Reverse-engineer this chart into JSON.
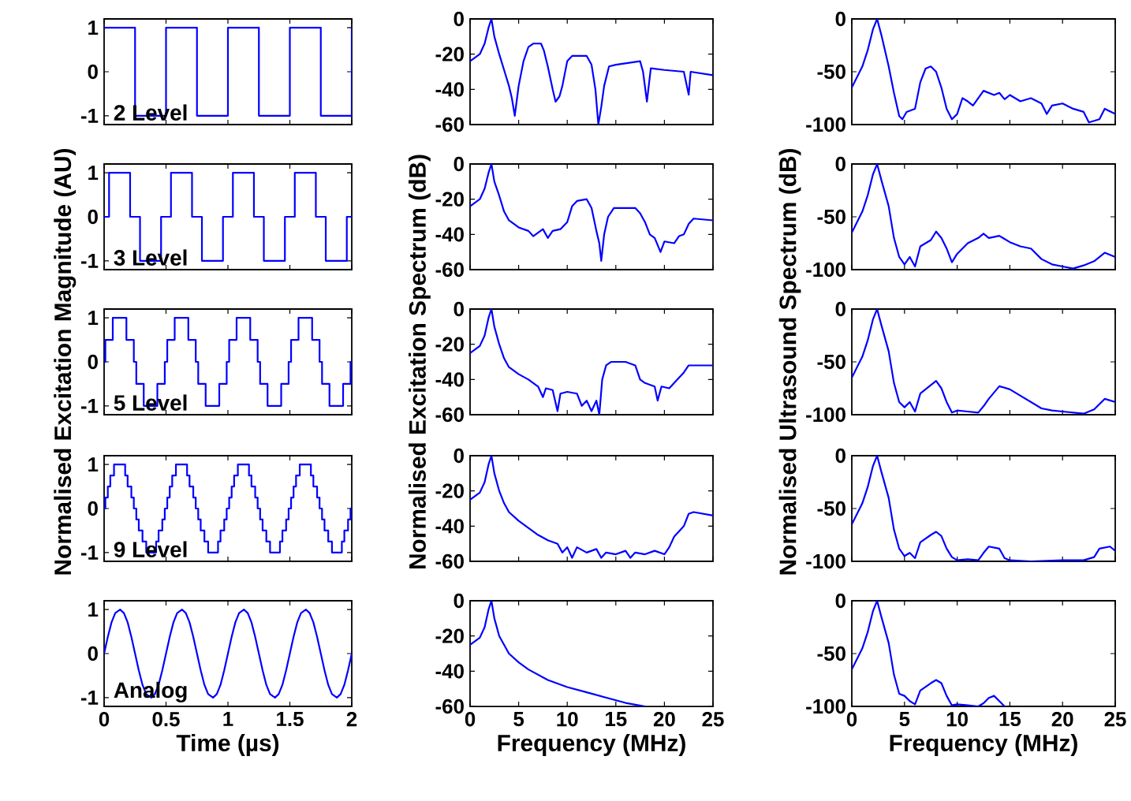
{
  "chart_data": [
    {
      "type": "step",
      "annotations": [
        "2 Level"
      ],
      "color": "#0000ff",
      "xlim": [
        0,
        2
      ],
      "ylim": [
        -1.2,
        1.2
      ],
      "xticks": [
        0,
        0.5,
        1,
        1.5,
        2
      ],
      "yticks": [
        -1,
        0,
        1
      ],
      "tick_labels": "y",
      "x": [
        0,
        0.25,
        0.5,
        0.75,
        1,
        1.25,
        1.5,
        1.75,
        2
      ],
      "values": [
        1,
        -1,
        1,
        -1,
        1,
        -1,
        1,
        -1,
        1
      ]
    },
    {
      "type": "line",
      "color": "#0000ff",
      "xlim": [
        0,
        25
      ],
      "ylim": [
        -60,
        0
      ],
      "xticks": [
        0,
        5,
        10,
        15,
        20,
        25
      ],
      "yticks": [
        -60,
        -40,
        -20,
        0
      ],
      "tick_labels": "y",
      "x": [
        0,
        1,
        1.5,
        1.9,
        2.2,
        2.5,
        3,
        3.5,
        4,
        4.3,
        4.6,
        5,
        5.5,
        6,
        6.5,
        7.3,
        7.6,
        8,
        8.5,
        8.8,
        9.2,
        9.5,
        10,
        10.5,
        12,
        12.5,
        12.9,
        13.2,
        13.5,
        13.8,
        14.3,
        15,
        17.5,
        17.8,
        18.2,
        18.6,
        20,
        22,
        22.5,
        22.7,
        25
      ],
      "values": [
        -24,
        -20,
        -14,
        -5,
        0,
        -10,
        -20,
        -29,
        -38,
        -45,
        -55,
        -38,
        -24,
        -16,
        -14,
        -14,
        -18,
        -27,
        -40,
        -47,
        -44,
        -38,
        -24,
        -21,
        -21,
        -26,
        -40,
        -60,
        -50,
        -38,
        -27,
        -26,
        -24,
        -30,
        -47,
        -28,
        -29,
        -30,
        -43,
        -30,
        -32
      ]
    },
    {
      "type": "line",
      "color": "#0000ff",
      "xlim": [
        0,
        25
      ],
      "ylim": [
        -100,
        0
      ],
      "xticks": [
        0,
        5,
        10,
        15,
        20,
        25
      ],
      "yticks": [
        -100,
        -50,
        0
      ],
      "tick_labels": "y",
      "x": [
        0,
        0.5,
        1,
        1.5,
        2,
        2.4,
        2.8,
        3.5,
        4,
        4.5,
        4.8,
        5.2,
        6,
        6.5,
        7,
        7.5,
        8,
        8.5,
        9,
        9.5,
        10,
        10.5,
        11,
        11.5,
        12.5,
        13.5,
        14,
        14.5,
        15,
        16,
        17,
        18,
        18.5,
        19,
        20,
        21,
        22,
        22.5,
        23.5,
        24,
        25
      ],
      "values": [
        -65,
        -55,
        -45,
        -30,
        -10,
        0,
        -15,
        -45,
        -70,
        -92,
        -95,
        -88,
        -85,
        -60,
        -47,
        -45,
        -50,
        -65,
        -85,
        -95,
        -90,
        -75,
        -78,
        -82,
        -68,
        -72,
        -70,
        -76,
        -72,
        -78,
        -75,
        -80,
        -90,
        -82,
        -80,
        -85,
        -88,
        -98,
        -95,
        -85,
        -90
      ]
    },
    {
      "type": "step",
      "annotations": [
        "3 Level"
      ],
      "color": "#0000ff",
      "xlim": [
        0,
        2
      ],
      "ylim": [
        -1.2,
        1.2
      ],
      "xticks": [
        0,
        0.5,
        1,
        1.5,
        2
      ],
      "yticks": [
        -1,
        0,
        1
      ],
      "tick_labels": "y",
      "x": [
        0,
        0.04,
        0.21,
        0.29,
        0.46,
        0.54,
        0.71,
        0.79,
        0.96,
        1.04,
        1.21,
        1.29,
        1.46,
        1.54,
        1.71,
        1.79,
        1.96,
        2
      ],
      "values": [
        0,
        1,
        0,
        -1,
        0,
        1,
        0,
        -1,
        0,
        1,
        0,
        -1,
        0,
        1,
        0,
        -1,
        0,
        0
      ]
    },
    {
      "type": "line",
      "color": "#0000ff",
      "xlim": [
        0,
        25
      ],
      "ylim": [
        -60,
        0
      ],
      "xticks": [
        0,
        5,
        10,
        15,
        20,
        25
      ],
      "yticks": [
        -60,
        -40,
        -20,
        0
      ],
      "tick_labels": "y",
      "x": [
        0,
        1,
        1.5,
        1.9,
        2.2,
        2.5,
        3,
        3.5,
        4,
        5,
        6,
        6.5,
        7,
        7.5,
        8,
        8.5,
        9.3,
        10,
        10.5,
        11,
        12,
        12.5,
        13,
        13.3,
        13.5,
        13.8,
        14.2,
        14.8,
        17,
        17.5,
        18,
        18.5,
        19,
        19.6,
        20,
        21,
        21.5,
        22,
        22.5,
        23,
        25
      ],
      "values": [
        -24,
        -20,
        -14,
        -5,
        0,
        -10,
        -18,
        -27,
        -32,
        -36,
        -38,
        -41,
        -39,
        -37,
        -42,
        -38,
        -37,
        -33,
        -24,
        -21,
        -20,
        -25,
        -38,
        -45,
        -55,
        -40,
        -30,
        -25,
        -25,
        -28,
        -33,
        -40,
        -42,
        -50,
        -44,
        -45,
        -41,
        -40,
        -34,
        -31,
        -32
      ]
    },
    {
      "type": "line",
      "color": "#0000ff",
      "xlim": [
        0,
        25
      ],
      "ylim": [
        -100,
        0
      ],
      "xticks": [
        0,
        5,
        10,
        15,
        20,
        25
      ],
      "yticks": [
        -100,
        -50,
        0
      ],
      "tick_labels": "y",
      "x": [
        0,
        0.5,
        1,
        1.5,
        2,
        2.4,
        2.8,
        3.5,
        4,
        4.5,
        5,
        5.5,
        6,
        6.5,
        7.5,
        8,
        8.5,
        9,
        9.5,
        10,
        11,
        12,
        12.5,
        13,
        14,
        15,
        16,
        17,
        18,
        19,
        20,
        21,
        22,
        23,
        24,
        25
      ],
      "values": [
        -65,
        -55,
        -45,
        -30,
        -10,
        0,
        -15,
        -40,
        -70,
        -88,
        -95,
        -88,
        -97,
        -78,
        -72,
        -64,
        -70,
        -80,
        -93,
        -85,
        -75,
        -70,
        -66,
        -70,
        -68,
        -74,
        -78,
        -80,
        -90,
        -95,
        -97,
        -99,
        -96,
        -92,
        -84,
        -88
      ]
    },
    {
      "type": "step",
      "annotations": [
        "5 Level"
      ],
      "ylabel": "Normalised Excitation Magnitude (AU)",
      "color": "#0000ff",
      "xlim": [
        0,
        2
      ],
      "ylim": [
        -1.2,
        1.2
      ],
      "xticks": [
        0,
        0.5,
        1,
        1.5,
        2
      ],
      "yticks": [
        -1,
        0,
        1
      ],
      "tick_labels": "y",
      "x": [
        0,
        0.01,
        0.07,
        0.18,
        0.24,
        0.26,
        0.32,
        0.43,
        0.49,
        0.51,
        0.57,
        0.68,
        0.74,
        0.76,
        0.82,
        0.93,
        0.99,
        1.01,
        1.07,
        1.18,
        1.24,
        1.26,
        1.32,
        1.43,
        1.49,
        1.51,
        1.57,
        1.68,
        1.74,
        1.76,
        1.82,
        1.93,
        1.99,
        2
      ],
      "values": [
        0,
        0.5,
        1,
        0.5,
        0,
        -0.5,
        -1,
        -0.5,
        0,
        0.5,
        1,
        0.5,
        0,
        -0.5,
        -1,
        -0.5,
        0,
        0.5,
        1,
        0.5,
        0,
        -0.5,
        -1,
        -0.5,
        0,
        0.5,
        1,
        0.5,
        0,
        -0.5,
        -1,
        -0.5,
        0,
        0
      ]
    },
    {
      "type": "line",
      "ylabel": "Normalised Excitation Spectrum (dB)",
      "color": "#0000ff",
      "xlim": [
        0,
        25
      ],
      "ylim": [
        -60,
        0
      ],
      "xticks": [
        0,
        5,
        10,
        15,
        20,
        25
      ],
      "yticks": [
        -60,
        -40,
        -20,
        0
      ],
      "tick_labels": "y",
      "x": [
        0,
        1,
        1.5,
        1.9,
        2.2,
        2.5,
        3,
        3.5,
        4,
        5,
        6,
        7,
        7.5,
        7.8,
        8.5,
        9,
        9.3,
        10,
        11,
        11.5,
        12,
        12.5,
        13,
        13.3,
        13.6,
        14,
        14.5,
        16,
        17,
        17.5,
        18,
        19,
        19.3,
        19.7,
        20.5,
        21,
        22,
        22.5,
        25
      ],
      "values": [
        -25,
        -21,
        -15,
        -5,
        0,
        -10,
        -20,
        -28,
        -33,
        -37,
        -40,
        -44,
        -50,
        -45,
        -46,
        -58,
        -48,
        -47,
        -48,
        -55,
        -52,
        -58,
        -52,
        -60,
        -40,
        -32,
        -30,
        -30,
        -32,
        -40,
        -42,
        -44,
        -52,
        -44,
        -45,
        -42,
        -36,
        -32,
        -32
      ]
    },
    {
      "type": "line",
      "ylabel": "Normalised Ultrasound Spectrum (dB)",
      "color": "#0000ff",
      "xlim": [
        0,
        25
      ],
      "ylim": [
        -100,
        0
      ],
      "xticks": [
        0,
        5,
        10,
        15,
        20,
        25
      ],
      "yticks": [
        -100,
        -50,
        0
      ],
      "tick_labels": "y",
      "x": [
        0,
        0.5,
        1,
        1.5,
        2,
        2.4,
        2.8,
        3.5,
        4,
        4.5,
        5,
        5.5,
        6,
        6.5,
        7.5,
        8,
        8.5,
        9,
        9.5,
        10,
        11,
        12,
        12.5,
        13,
        14,
        15,
        16,
        17,
        18,
        19,
        20,
        22,
        23,
        24,
        25
      ],
      "values": [
        -65,
        -55,
        -45,
        -30,
        -10,
        0,
        -15,
        -40,
        -70,
        -88,
        -93,
        -88,
        -97,
        -80,
        -72,
        -68,
        -75,
        -88,
        -98,
        -96,
        -97,
        -98,
        -92,
        -85,
        -73,
        -76,
        -82,
        -88,
        -94,
        -96,
        -97,
        -99,
        -95,
        -85,
        -88
      ]
    },
    {
      "type": "step",
      "annotations": [
        "9 Level"
      ],
      "color": "#0000ff",
      "xlim": [
        0,
        2
      ],
      "ylim": [
        -1.2,
        1.2
      ],
      "xticks": [
        0,
        0.5,
        1,
        1.5,
        2
      ],
      "yticks": [
        -1,
        0,
        1
      ],
      "tick_labels": "y",
      "x": [
        0,
        0.01,
        0.03,
        0.05,
        0.08,
        0.17,
        0.19,
        0.22,
        0.24,
        0.26,
        0.28,
        0.31,
        0.34,
        0.42,
        0.44,
        0.47,
        0.49,
        0.51,
        0.53,
        0.55,
        0.58,
        0.67,
        0.69,
        0.72,
        0.74,
        0.76,
        0.78,
        0.81,
        0.84,
        0.92,
        0.94,
        0.97,
        0.99,
        1.01,
        1.03,
        1.05,
        1.08,
        1.17,
        1.19,
        1.22,
        1.24,
        1.26,
        1.28,
        1.31,
        1.34,
        1.42,
        1.44,
        1.47,
        1.49,
        1.51,
        1.53,
        1.55,
        1.58,
        1.67,
        1.69,
        1.72,
        1.74,
        1.76,
        1.78,
        1.81,
        1.84,
        1.92,
        1.94,
        1.97,
        1.99,
        2
      ],
      "values": [
        0,
        0.25,
        0.5,
        0.75,
        1,
        0.75,
        0.5,
        0.25,
        0,
        -0.25,
        -0.5,
        -0.75,
        -1,
        -0.75,
        -0.5,
        -0.25,
        0,
        0.25,
        0.5,
        0.75,
        1,
        0.75,
        0.5,
        0.25,
        0,
        -0.25,
        -0.5,
        -0.75,
        -1,
        -0.75,
        -0.5,
        -0.25,
        0,
        0.25,
        0.5,
        0.75,
        1,
        0.75,
        0.5,
        0.25,
        0,
        -0.25,
        -0.5,
        -0.75,
        -1,
        -0.75,
        -0.5,
        -0.25,
        0,
        0.25,
        0.5,
        0.75,
        1,
        0.75,
        0.5,
        0.25,
        0,
        -0.25,
        -0.5,
        -0.75,
        -1,
        -0.75,
        -0.5,
        -0.25,
        0,
        0
      ]
    },
    {
      "type": "line",
      "color": "#0000ff",
      "xlim": [
        0,
        25
      ],
      "ylim": [
        -60,
        0
      ],
      "xticks": [
        0,
        5,
        10,
        15,
        20,
        25
      ],
      "yticks": [
        -60,
        -40,
        -20,
        0
      ],
      "tick_labels": "y",
      "x": [
        0,
        1,
        1.5,
        1.9,
        2.2,
        2.5,
        3,
        3.5,
        4,
        5,
        6,
        7,
        8,
        9,
        9.5,
        10,
        10.5,
        11,
        12,
        13,
        13.5,
        14,
        15,
        16,
        16.5,
        17,
        18,
        19,
        20,
        20.5,
        21,
        22,
        22.5,
        23,
        25
      ],
      "values": [
        -25,
        -21,
        -15,
        -5,
        0,
        -10,
        -20,
        -27,
        -32,
        -37,
        -41,
        -45,
        -48,
        -50,
        -55,
        -52,
        -58,
        -52,
        -55,
        -53,
        -58,
        -55,
        -56,
        -54,
        -58,
        -55,
        -56,
        -54,
        -56,
        -52,
        -46,
        -40,
        -33,
        -32,
        -34
      ]
    },
    {
      "type": "line",
      "color": "#0000ff",
      "xlim": [
        0,
        25
      ],
      "ylim": [
        -100,
        0
      ],
      "xticks": [
        0,
        5,
        10,
        15,
        20,
        25
      ],
      "yticks": [
        -100,
        -50,
        0
      ],
      "tick_labels": "y",
      "x": [
        0,
        0.5,
        1,
        1.5,
        2,
        2.4,
        2.8,
        3.5,
        4,
        4.5,
        5,
        5.5,
        6,
        6.5,
        7.5,
        8,
        8.5,
        9,
        9.5,
        10,
        11,
        12,
        12.5,
        13,
        14,
        14.5,
        15,
        17,
        20,
        22,
        23,
        23.5,
        24.5,
        25
      ],
      "values": [
        -65,
        -55,
        -45,
        -30,
        -10,
        0,
        -15,
        -40,
        -70,
        -88,
        -95,
        -92,
        -97,
        -82,
        -75,
        -72,
        -76,
        -88,
        -96,
        -99,
        -98,
        -99,
        -92,
        -86,
        -88,
        -97,
        -99,
        -100,
        -99,
        -99,
        -96,
        -88,
        -86,
        -90
      ]
    },
    {
      "type": "line",
      "annotations": [
        "Analog"
      ],
      "xlabel": "Time (µs)",
      "color": "#0000ff",
      "xlim": [
        0,
        2
      ],
      "ylim": [
        -1.2,
        1.2
      ],
      "xticks": [
        0,
        0.5,
        1,
        1.5,
        2
      ],
      "yticks": [
        -1,
        0,
        1
      ],
      "x": [
        0,
        0.03,
        0.06,
        0.09,
        0.13,
        0.16,
        0.19,
        0.22,
        0.25,
        0.28,
        0.31,
        0.34,
        0.38,
        0.41,
        0.44,
        0.47,
        0.5,
        0.53,
        0.56,
        0.59,
        0.63,
        0.66,
        0.69,
        0.72,
        0.75,
        0.78,
        0.81,
        0.84,
        0.88,
        0.91,
        0.94,
        0.97,
        1,
        1.03,
        1.06,
        1.09,
        1.13,
        1.16,
        1.19,
        1.22,
        1.25,
        1.28,
        1.31,
        1.34,
        1.38,
        1.41,
        1.44,
        1.47,
        1.5,
        1.53,
        1.56,
        1.59,
        1.63,
        1.66,
        1.69,
        1.72,
        1.75,
        1.78,
        1.81,
        1.84,
        1.88,
        1.91,
        1.94,
        1.97,
        2
      ],
      "values": [
        0,
        0.38,
        0.71,
        0.92,
        1,
        0.92,
        0.71,
        0.38,
        0,
        -0.38,
        -0.71,
        -0.92,
        -1,
        -0.92,
        -0.71,
        -0.38,
        0,
        0.38,
        0.71,
        0.92,
        1,
        0.92,
        0.71,
        0.38,
        0,
        -0.38,
        -0.71,
        -0.92,
        -1,
        -0.92,
        -0.71,
        -0.38,
        0,
        0.38,
        0.71,
        0.92,
        1,
        0.92,
        0.71,
        0.38,
        0,
        -0.38,
        -0.71,
        -0.92,
        -1,
        -0.92,
        -0.71,
        -0.38,
        0,
        0.38,
        0.71,
        0.92,
        1,
        0.92,
        0.71,
        0.38,
        0,
        -0.38,
        -0.71,
        -0.92,
        -1,
        -0.92,
        -0.71,
        -0.38,
        0
      ]
    },
    {
      "type": "line",
      "xlabel": "Frequency (MHz)",
      "color": "#0000ff",
      "xlim": [
        0,
        25
      ],
      "ylim": [
        -60,
        0
      ],
      "xticks": [
        0,
        5,
        10,
        15,
        20,
        25
      ],
      "yticks": [
        -60,
        -40,
        -20,
        0
      ],
      "x": [
        0,
        1,
        1.5,
        1.9,
        2.2,
        2.5,
        3,
        4,
        5,
        6,
        8,
        10,
        12,
        14,
        16,
        18
      ],
      "values": [
        -25,
        -21,
        -15,
        -5,
        0,
        -10,
        -20,
        -30,
        -35,
        -39,
        -45,
        -49,
        -52,
        -55,
        -58,
        -60
      ]
    },
    {
      "type": "line",
      "xlabel": "Frequency (MHz)",
      "color": "#0000ff",
      "xlim": [
        0,
        25
      ],
      "ylim": [
        -100,
        0
      ],
      "xticks": [
        0,
        5,
        10,
        15,
        20,
        25
      ],
      "yticks": [
        -100,
        -50,
        0
      ],
      "x": [
        0,
        0.5,
        1,
        1.5,
        2,
        2.4,
        2.8,
        3.5,
        4,
        4.5,
        5,
        5.5,
        6,
        6.5,
        7.5,
        8,
        8.5,
        9,
        9.5,
        10,
        11,
        12,
        12.5,
        13,
        13.5,
        14,
        14.5
      ],
      "values": [
        -65,
        -55,
        -45,
        -30,
        -10,
        0,
        -15,
        -40,
        -70,
        -88,
        -90,
        -95,
        -98,
        -85,
        -78,
        -75,
        -78,
        -90,
        -99,
        -98,
        -99,
        -100,
        -97,
        -92,
        -90,
        -95,
        -100
      ]
    }
  ]
}
